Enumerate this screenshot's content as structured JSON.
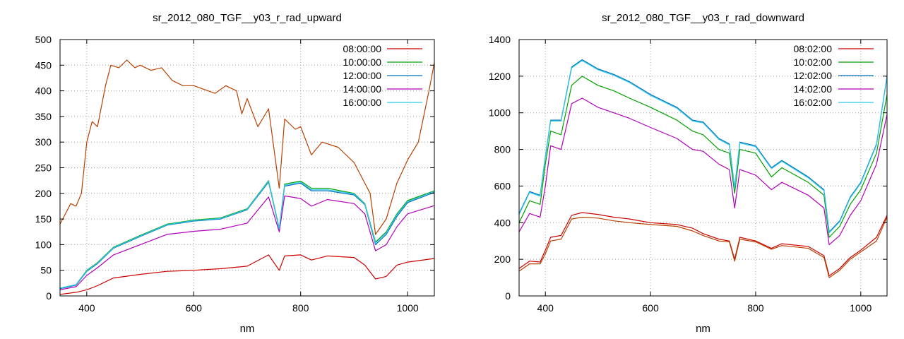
{
  "chart_data": [
    {
      "type": "line",
      "title": "sr_2012_080_TGF__y03_r_rad_upward",
      "xlabel": "nm",
      "ylabel": "",
      "xlim": [
        350,
        1050
      ],
      "ylim": [
        0,
        500
      ],
      "xticks": [
        400,
        600,
        800,
        1000
      ],
      "yticks": [
        0,
        50,
        100,
        150,
        200,
        250,
        300,
        350,
        400,
        450,
        500
      ],
      "grid": true,
      "legend_position": "top-right",
      "series": [
        {
          "name": "08:00:00",
          "color": "#cc0000",
          "x": [
            350,
            380,
            400,
            420,
            450,
            500,
            550,
            600,
            650,
            700,
            740,
            760,
            770,
            800,
            820,
            850,
            900,
            920,
            940,
            960,
            980,
            1000,
            1050
          ],
          "y": [
            3,
            7,
            12,
            20,
            35,
            42,
            48,
            50,
            53,
            58,
            80,
            50,
            78,
            80,
            70,
            78,
            75,
            60,
            33,
            38,
            60,
            66,
            73
          ]
        },
        {
          "name": "10:00:00",
          "color": "#00a000",
          "x": [
            350,
            380,
            400,
            420,
            450,
            500,
            550,
            600,
            650,
            700,
            740,
            760,
            770,
            800,
            820,
            850,
            900,
            920,
            940,
            960,
            980,
            1000,
            1050
          ],
          "y": [
            15,
            22,
            50,
            65,
            95,
            118,
            140,
            148,
            152,
            170,
            225,
            132,
            218,
            224,
            210,
            210,
            200,
            180,
            105,
            125,
            160,
            186,
            205
          ]
        },
        {
          "name": "12:00:00",
          "color": "#0070b8",
          "x": [
            350,
            380,
            400,
            420,
            450,
            500,
            550,
            600,
            650,
            700,
            740,
            760,
            770,
            800,
            820,
            850,
            900,
            920,
            940,
            960,
            980,
            1000,
            1050
          ],
          "y": [
            14,
            21,
            48,
            63,
            93,
            116,
            138,
            146,
            150,
            168,
            222,
            130,
            214,
            220,
            205,
            205,
            197,
            178,
            100,
            120,
            155,
            182,
            202
          ]
        },
        {
          "name": "14:00:00",
          "color": "#b000b8",
          "x": [
            350,
            380,
            400,
            420,
            450,
            500,
            550,
            600,
            650,
            700,
            740,
            760,
            770,
            800,
            820,
            850,
            900,
            920,
            940,
            960,
            980,
            1000,
            1050
          ],
          "y": [
            12,
            18,
            40,
            55,
            80,
            100,
            120,
            126,
            130,
            142,
            193,
            125,
            195,
            190,
            175,
            188,
            180,
            160,
            88,
            100,
            135,
            160,
            176
          ]
        },
        {
          "name": "16:00:00",
          "color": "#2ec9e8",
          "x": [
            350,
            380,
            400,
            420,
            450,
            500,
            550,
            600,
            650,
            700,
            740,
            760,
            770,
            800,
            820,
            850,
            900,
            920,
            940,
            960,
            980,
            1000,
            1050
          ],
          "y": [
            15,
            22,
            49,
            64,
            94,
            117,
            139,
            147,
            151,
            169,
            224,
            131,
            216,
            222,
            207,
            207,
            199,
            179,
            103,
            123,
            158,
            184,
            204
          ]
        },
        {
          "name": "",
          "color": "#b84000",
          "x": [
            350,
            370,
            380,
            390,
            400,
            410,
            420,
            435,
            445,
            460,
            475,
            490,
            500,
            520,
            540,
            560,
            580,
            600,
            640,
            660,
            680,
            690,
            700,
            720,
            740,
            760,
            770,
            790,
            800,
            820,
            840,
            870,
            900,
            930,
            940,
            960,
            980,
            1000,
            1020,
            1040,
            1050
          ],
          "y": [
            140,
            180,
            175,
            200,
            300,
            340,
            330,
            410,
            450,
            445,
            460,
            445,
            450,
            440,
            445,
            420,
            410,
            410,
            395,
            410,
            400,
            355,
            385,
            330,
            365,
            210,
            345,
            325,
            330,
            275,
            300,
            290,
            260,
            200,
            120,
            150,
            220,
            265,
            300,
            400,
            455
          ]
        }
      ]
    },
    {
      "type": "line",
      "title": "sr_2012_080_TGF__y03_r_rad_downward",
      "xlabel": "nm",
      "ylabel": "",
      "xlim": [
        350,
        1050
      ],
      "ylim": [
        0,
        1400
      ],
      "xticks": [
        400,
        600,
        800,
        1000
      ],
      "yticks": [
        0,
        200,
        400,
        600,
        800,
        1000,
        1200,
        1400
      ],
      "grid": true,
      "legend_position": "top-right",
      "series": [
        {
          "name": "08:02:00",
          "color": "#cc0000",
          "x": [
            350,
            370,
            390,
            400,
            410,
            430,
            450,
            470,
            500,
            530,
            560,
            600,
            650,
            680,
            700,
            730,
            750,
            760,
            770,
            800,
            830,
            850,
            900,
            930,
            940,
            960,
            980,
            1000,
            1030,
            1050
          ],
          "y": [
            150,
            190,
            185,
            250,
            320,
            330,
            440,
            455,
            445,
            430,
            420,
            400,
            390,
            370,
            340,
            310,
            300,
            200,
            320,
            300,
            260,
            285,
            270,
            220,
            110,
            150,
            210,
            250,
            320,
            440
          ]
        },
        {
          "name": "10:02:00",
          "color": "#00a000",
          "x": [
            350,
            370,
            390,
            400,
            410,
            430,
            450,
            470,
            500,
            530,
            560,
            600,
            650,
            680,
            700,
            730,
            750,
            760,
            770,
            800,
            830,
            850,
            900,
            930,
            940,
            960,
            980,
            1000,
            1030,
            1050
          ],
          "y": [
            400,
            520,
            500,
            720,
            900,
            880,
            1150,
            1200,
            1150,
            1120,
            1080,
            1030,
            960,
            900,
            880,
            800,
            780,
            560,
            800,
            780,
            650,
            700,
            620,
            550,
            320,
            380,
            500,
            580,
            780,
            1100
          ]
        },
        {
          "name": "12:02:00",
          "color": "#0070b8",
          "x": [
            350,
            370,
            390,
            400,
            410,
            430,
            450,
            470,
            500,
            530,
            560,
            600,
            650,
            680,
            700,
            730,
            750,
            760,
            770,
            800,
            830,
            850,
            900,
            930,
            940,
            960,
            980,
            1000,
            1030,
            1050
          ],
          "y": [
            450,
            570,
            550,
            760,
            960,
            960,
            1250,
            1290,
            1240,
            1210,
            1170,
            1100,
            1030,
            960,
            950,
            860,
            830,
            590,
            840,
            820,
            700,
            740,
            650,
            580,
            350,
            410,
            540,
            620,
            830,
            1200
          ]
        },
        {
          "name": "14:02:00",
          "color": "#b000b8",
          "x": [
            350,
            370,
            390,
            400,
            410,
            430,
            450,
            470,
            500,
            530,
            560,
            600,
            650,
            680,
            700,
            730,
            750,
            760,
            770,
            800,
            830,
            850,
            900,
            930,
            940,
            960,
            980,
            1000,
            1030,
            1050
          ],
          "y": [
            350,
            450,
            430,
            600,
            820,
            800,
            1050,
            1080,
            1030,
            1000,
            970,
            920,
            860,
            800,
            790,
            720,
            690,
            480,
            690,
            660,
            580,
            620,
            550,
            480,
            280,
            330,
            440,
            520,
            720,
            990
          ]
        },
        {
          "name": "16:02:00",
          "color": "#2ec9e8",
          "x": [
            350,
            370,
            390,
            400,
            410,
            430,
            450,
            470,
            500,
            530,
            560,
            600,
            650,
            680,
            700,
            730,
            750,
            760,
            770,
            800,
            830,
            850,
            900,
            930,
            940,
            960,
            980,
            1000,
            1030,
            1050
          ],
          "y": [
            445,
            565,
            545,
            755,
            955,
            955,
            1245,
            1285,
            1235,
            1205,
            1165,
            1095,
            1025,
            955,
            945,
            855,
            825,
            585,
            835,
            815,
            695,
            735,
            645,
            575,
            345,
            405,
            535,
            615,
            825,
            1195
          ]
        },
        {
          "name": "",
          "color": "#b84000",
          "x": [
            350,
            370,
            390,
            400,
            410,
            430,
            450,
            470,
            500,
            530,
            560,
            600,
            650,
            680,
            700,
            730,
            750,
            760,
            770,
            800,
            830,
            850,
            900,
            930,
            940,
            960,
            980,
            1000,
            1030,
            1050
          ],
          "y": [
            135,
            175,
            175,
            230,
            300,
            310,
            420,
            430,
            425,
            410,
            400,
            390,
            380,
            355,
            330,
            300,
            295,
            190,
            310,
            295,
            255,
            275,
            260,
            210,
            100,
            140,
            200,
            240,
            300,
            430
          ]
        }
      ]
    }
  ]
}
